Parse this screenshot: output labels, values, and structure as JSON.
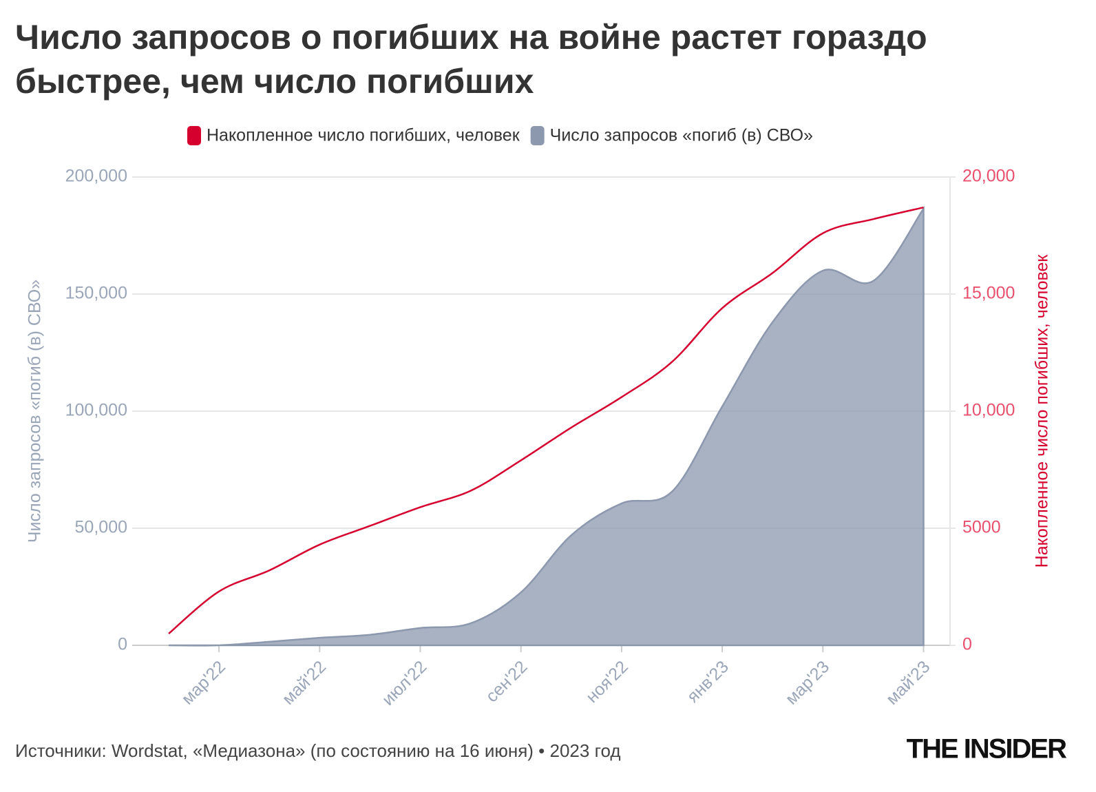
{
  "chart_data": {
    "type": "area-line",
    "title": "Число запросов о погибших на войне растет гораздо быстрее, чем число погибших",
    "source": "Источники: Wordstat, «Медиазона» (по состоянию на 16 июня) • 2023 год",
    "logo": "THE INSIDER",
    "ylabel": "Число запросов «погиб (в) СВО»",
    "y2label": "Накопленное число погибших, человек",
    "categories": [
      null,
      "мар'22",
      null,
      "май'22",
      null,
      "июл'22",
      null,
      "сен'22",
      null,
      "ноя'22",
      null,
      "янв'23",
      null,
      "мар'23",
      null,
      "май'23"
    ],
    "series": [
      {
        "name": "Накопленное число погибших, человек",
        "type": "line",
        "axis": "y2",
        "color": "#d6002f",
        "values": [
          500,
          2300,
          3200,
          4300,
          5100,
          5900,
          6600,
          7900,
          9300,
          10600,
          12100,
          14400,
          15900,
          17600,
          18200,
          18700
        ]
      },
      {
        "name": "Число запросов «погиб (в) СВО»",
        "type": "area",
        "color": "#8c98ae",
        "values": [
          0,
          0,
          1500,
          3200,
          4500,
          7400,
          9400,
          22600,
          47000,
          60600,
          65600,
          102000,
          138000,
          160000,
          155600,
          186500
        ]
      }
    ],
    "ylim": [
      0,
      200000
    ],
    "yticks": [
      0,
      {
        "value": 50000,
        "label": "50,000"
      },
      {
        "value": 100000,
        "label": "100,000"
      },
      {
        "value": 150000,
        "label": "150,000"
      },
      {
        "value": 200000,
        "label": "200,000"
      }
    ],
    "y2lim": [
      0,
      20000
    ],
    "y2ticks": [
      0,
      5000,
      {
        "value": 10000,
        "label": "10,000"
      },
      {
        "value": 15000,
        "label": "15,000"
      },
      {
        "value": 20000,
        "label": "20,000"
      }
    ],
    "grid": true
  }
}
